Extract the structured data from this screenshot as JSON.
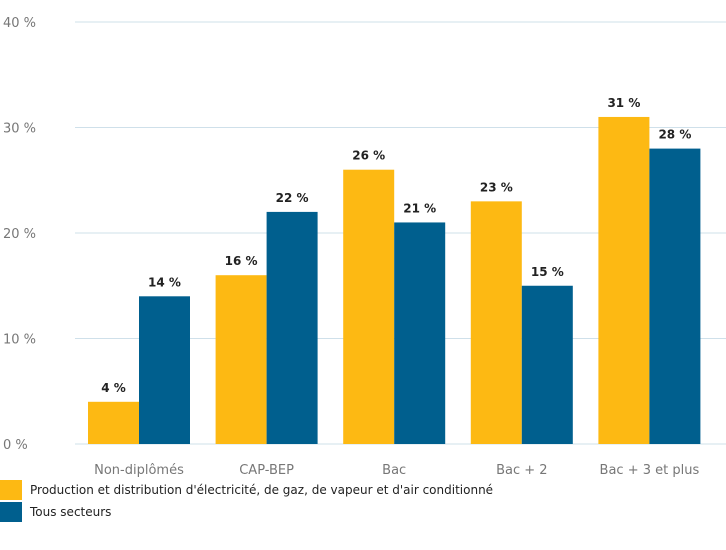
{
  "chart_data": {
    "type": "bar",
    "categories": [
      "Non-diplômés",
      "CAP-BEP",
      "Bac",
      "Bac + 2",
      "Bac + 3 et plus"
    ],
    "series": [
      {
        "name": "Production et distribution d'électricité, de gaz, de vapeur et d'air conditionné",
        "values": [
          4,
          16,
          26,
          23,
          31
        ],
        "labels": [
          "4 %",
          "16 %",
          "26 %",
          "23 %",
          "31 %"
        ],
        "color": "#FDB913"
      },
      {
        "name": "Tous secteurs",
        "values": [
          14,
          22,
          21,
          15,
          28
        ],
        "labels": [
          "14 %",
          "22 %",
          "21 %",
          "15 %",
          "28 %"
        ],
        "color": "#005F8E"
      }
    ],
    "yticks": [
      {
        "value": 0,
        "label": "0 %"
      },
      {
        "value": 10,
        "label": "10 %"
      },
      {
        "value": 20,
        "label": "20 %"
      },
      {
        "value": 30,
        "label": "30 %"
      },
      {
        "value": 40,
        "label": "40 %"
      }
    ],
    "ylim": [
      0,
      40
    ],
    "grid": true,
    "legend_position": "bottom-left"
  }
}
